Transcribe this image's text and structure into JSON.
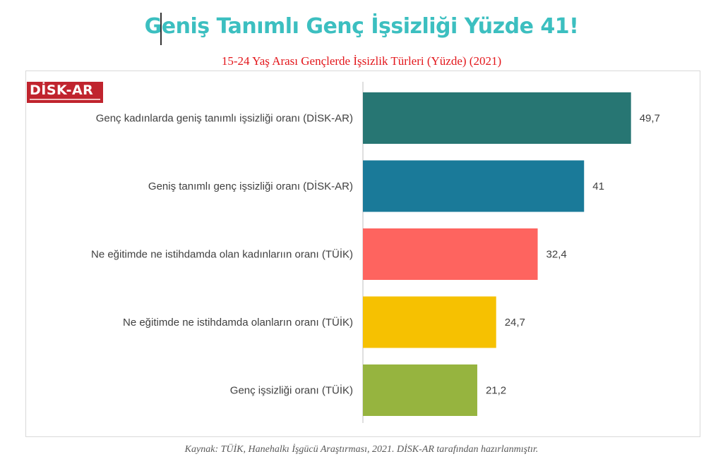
{
  "title": "Geniş Tanımlı Genç İşsizliği Yüzde 41!",
  "subtitle": "15-24 Yaş Arası Gençlerde İşsizlik Türleri (Yüzde) (2021)",
  "logo": {
    "text": "DİSK-AR",
    "color": "#c0242e"
  },
  "footer": "Kaynak: TÜİK, Hanehalkı İşgücü Araştırması, 2021. DİSK-AR tarafından hazırlanmıştır.",
  "colors": {
    "title": "#3cbfc0",
    "subtitle": "#e3161b"
  },
  "chart_data": {
    "type": "bar",
    "orientation": "horizontal",
    "categories": [
      "Genç kadınlarda geniş tanımlı işsizliği oranı (DİSK-AR)",
      "Geniş tanımlı genç işsizliği oranı (DİSK-AR)",
      "Ne eğitimde ne istihdamda olan kadınlarıın oranı (TÜİK)",
      "Ne eğitimde ne istihdamda olanların oranı (TÜİK)",
      "Genç işsizliği oranı (TÜİK)"
    ],
    "values": [
      49.7,
      41,
      32.4,
      24.7,
      21.2
    ],
    "value_labels": [
      "49,7",
      "41",
      "32,4",
      "24,7",
      "21,2"
    ],
    "bar_colors": [
      "#277673",
      "#1a7a99",
      "#fe645f",
      "#f6c101",
      "#96b43f"
    ],
    "xlim": [
      0,
      55
    ],
    "grid": false,
    "legend": "none"
  }
}
